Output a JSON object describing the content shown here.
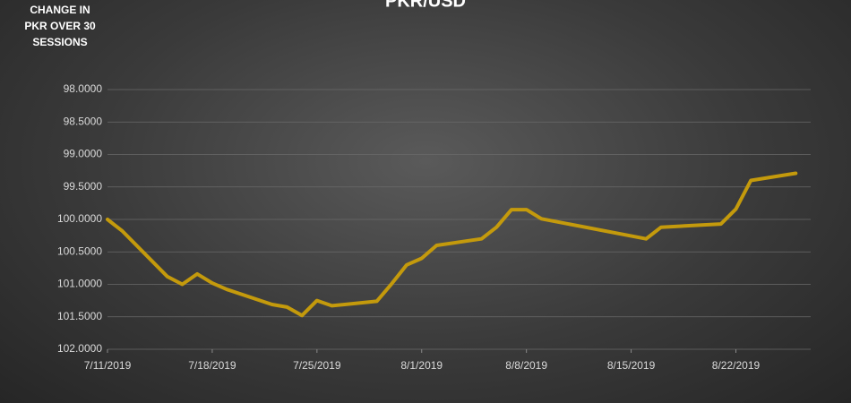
{
  "chart_data": {
    "type": "line",
    "title": "PKR/USD",
    "y_label": "CHANGE IN PKR OVER 30 SESSIONS",
    "x": [
      "7/11/2019",
      "7/12/2019",
      "7/15/2019",
      "7/16/2019",
      "7/17/2019",
      "7/18/2019",
      "7/19/2019",
      "7/22/2019",
      "7/23/2019",
      "7/24/2019",
      "7/25/2019",
      "7/26/2019",
      "7/29/2019",
      "7/30/2019",
      "7/31/2019",
      "8/1/2019",
      "8/2/2019",
      "8/5/2019",
      "8/6/2019",
      "8/7/2019",
      "8/8/2019",
      "8/9/2019",
      "8/16/2019",
      "8/17/2019",
      "8/21/2019",
      "8/22/2019",
      "8/23/2019",
      "8/26/2019"
    ],
    "series": [
      {
        "name": "PKR/USD",
        "color": "#c49a0c",
        "values": [
          100.0,
          100.18,
          100.88,
          101.0,
          100.84,
          100.98,
          101.08,
          101.31,
          101.35,
          101.48,
          101.25,
          101.33,
          101.26,
          100.99,
          100.7,
          100.6,
          100.4,
          100.3,
          100.12,
          99.85,
          99.85,
          99.99,
          100.3,
          100.12,
          100.07,
          99.84,
          99.4,
          99.29
        ]
      }
    ],
    "xlim": [
      "7/11/2019",
      "8/27/2019"
    ],
    "xticks": [
      "7/11/2019",
      "7/18/2019",
      "7/25/2019",
      "8/1/2019",
      "8/8/2019",
      "8/15/2019",
      "8/22/2019"
    ],
    "ylim": [
      98,
      102
    ],
    "y_inverted": true,
    "yticks": [
      {
        "value": 98,
        "label": "98.0000"
      },
      {
        "value": 98.5,
        "label": "98.5000"
      },
      {
        "value": 99,
        "label": "99.0000"
      },
      {
        "value": 99.5,
        "label": "99.5000"
      },
      {
        "value": 100,
        "label": "100.0000"
      },
      {
        "value": 100.5,
        "label": "100.5000"
      },
      {
        "value": 101,
        "label": "101.0000"
      },
      {
        "value": 101.5,
        "label": "101.5000"
      },
      {
        "value": 102,
        "label": "102.0000"
      }
    ],
    "grid": true
  }
}
